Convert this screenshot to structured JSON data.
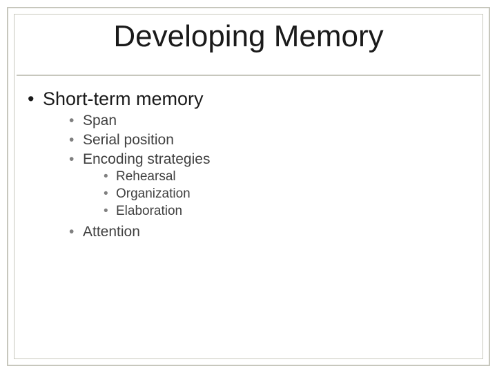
{
  "slide": {
    "title": "Developing Memory",
    "title_fontsize": 44,
    "title_color": "#1a1a1a",
    "background_color": "#ffffff",
    "frame_color": "#c7c7bd",
    "outline": {
      "lvl1_bullet": "•",
      "lvl2_bullet": "•",
      "lvl3_bullet": "•",
      "lvl1_fontsize": 27,
      "lvl2_fontsize": 21,
      "lvl3_fontsize": 19,
      "lvl1_color": "#1a1a1a",
      "lvl2_color": "#404040",
      "lvl3_color": "#404040",
      "items": [
        {
          "label": "Short-term memory",
          "children": [
            {
              "label": "Span"
            },
            {
              "label": "Serial position"
            },
            {
              "label": "Encoding strategies",
              "children": [
                {
                  "label": "Rehearsal"
                },
                {
                  "label": "Organization"
                },
                {
                  "label": "Elaboration"
                }
              ]
            },
            {
              "label": "Attention"
            }
          ]
        }
      ]
    }
  }
}
